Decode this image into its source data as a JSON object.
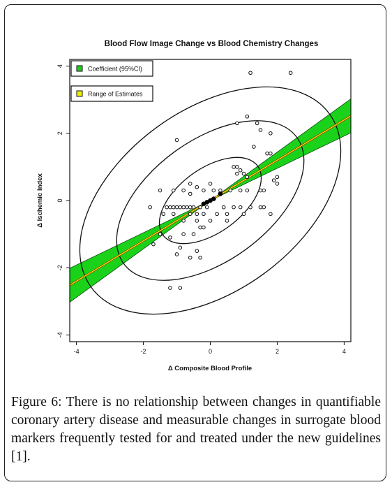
{
  "chart_data": {
    "type": "scatter",
    "title": "Blood Flow Image Change vs Blood Chemistry Changes",
    "xlabel": "Δ Composite Blood Profile",
    "ylabel": "Δ Ischemic Index",
    "xlim": [
      -4.2,
      4.2
    ],
    "ylim": [
      -4.2,
      4.2
    ],
    "xticks": [
      "-4",
      "-2",
      "0",
      "2",
      "4"
    ],
    "yticks": [
      "-4",
      "-2",
      "0",
      "2",
      "4"
    ],
    "grid": false,
    "legend_position": "top-left",
    "legend": [
      {
        "label": "Coefficient (95%CI)",
        "color": "#22cc22"
      },
      {
        "label": "Range of Estimates",
        "color": "#eeee00"
      }
    ],
    "regression": {
      "slope": 0.6,
      "intercept": 0.0,
      "ci_upper_slope": 0.72,
      "ci_lower_slope": 0.48,
      "center": [
        0,
        0
      ]
    },
    "ellipses": [
      {
        "center": [
          0,
          0
        ],
        "semi_major": 1.75,
        "semi_minor": 0.95,
        "angle_deg": 36
      },
      {
        "center": [
          0,
          0
        ],
        "semi_major": 3.2,
        "semi_minor": 1.8,
        "angle_deg": 36
      },
      {
        "center": [
          0,
          0
        ],
        "semi_major": 4.4,
        "semi_minor": 2.7,
        "angle_deg": 36
      }
    ],
    "points": [
      [
        1.2,
        3.8
      ],
      [
        2.4,
        3.8
      ],
      [
        -1.0,
        1.8
      ],
      [
        1.1,
        2.5
      ],
      [
        0.8,
        2.3
      ],
      [
        1.4,
        2.3
      ],
      [
        1.5,
        2.1
      ],
      [
        1.8,
        2.0
      ],
      [
        1.3,
        1.6
      ],
      [
        1.7,
        1.4
      ],
      [
        1.8,
        1.4
      ],
      [
        0.7,
        1.0
      ],
      [
        0.8,
        1.0
      ],
      [
        0.9,
        0.9
      ],
      [
        0.8,
        0.8
      ],
      [
        1.0,
        0.8
      ],
      [
        1.1,
        0.7
      ],
      [
        2.0,
        0.7
      ],
      [
        1.9,
        0.6
      ],
      [
        2.0,
        0.5
      ],
      [
        -1.5,
        0.3
      ],
      [
        -1.1,
        0.3
      ],
      [
        -0.8,
        0.3
      ],
      [
        -0.6,
        0.5
      ],
      [
        -0.4,
        0.4
      ],
      [
        -0.2,
        0.3
      ],
      [
        0.0,
        0.5
      ],
      [
        0.1,
        0.3
      ],
      [
        0.3,
        0.3
      ],
      [
        0.6,
        0.3
      ],
      [
        0.9,
        0.3
      ],
      [
        1.1,
        0.3
      ],
      [
        1.5,
        0.3
      ],
      [
        1.6,
        0.3
      ],
      [
        -0.6,
        0.2
      ],
      [
        -1.8,
        -0.2
      ],
      [
        -1.3,
        -0.2
      ],
      [
        -1.2,
        -0.2
      ],
      [
        -1.1,
        -0.2
      ],
      [
        -1.0,
        -0.2
      ],
      [
        -0.9,
        -0.2
      ],
      [
        -0.8,
        -0.2
      ],
      [
        -0.7,
        -0.2
      ],
      [
        -0.6,
        -0.2
      ],
      [
        -0.5,
        -0.2
      ],
      [
        -0.3,
        -0.2
      ],
      [
        -0.1,
        -0.2
      ],
      [
        0.4,
        -0.2
      ],
      [
        0.7,
        -0.2
      ],
      [
        0.9,
        -0.2
      ],
      [
        1.2,
        -0.2
      ],
      [
        1.5,
        -0.2
      ],
      [
        1.6,
        -0.2
      ],
      [
        -1.4,
        -0.4
      ],
      [
        -1.1,
        -0.4
      ],
      [
        -0.6,
        -0.4
      ],
      [
        -0.4,
        -0.4
      ],
      [
        -0.2,
        -0.4
      ],
      [
        0.2,
        -0.4
      ],
      [
        0.5,
        -0.4
      ],
      [
        1.0,
        -0.4
      ],
      [
        1.8,
        -0.4
      ],
      [
        -0.8,
        -0.6
      ],
      [
        -0.4,
        -0.6
      ],
      [
        0.0,
        -0.6
      ],
      [
        0.5,
        -0.6
      ],
      [
        -0.3,
        -0.8
      ],
      [
        -0.2,
        -0.8
      ],
      [
        -0.5,
        -1.0
      ],
      [
        -0.8,
        -1.0
      ],
      [
        -1.2,
        -1.1
      ],
      [
        -1.5,
        -1.0
      ],
      [
        -1.7,
        -1.3
      ],
      [
        -0.9,
        -1.4
      ],
      [
        -0.4,
        -1.5
      ],
      [
        -1.0,
        -1.6
      ],
      [
        -0.6,
        -1.7
      ],
      [
        -0.3,
        -1.7
      ],
      [
        -1.2,
        -2.6
      ],
      [
        -0.9,
        -2.6
      ]
    ],
    "center_points": [
      [
        -0.2,
        -0.1
      ],
      [
        0.0,
        0.0
      ],
      [
        0.3,
        0.2
      ],
      [
        -0.1,
        -0.05
      ],
      [
        0.1,
        0.05
      ]
    ]
  },
  "caption": {
    "label": "Figure 6:",
    "text": " There is no relationship between changes in quantifiable coronary artery disease and measurable changes in surrogate blood markers frequently tested for and treated under the new guidelines [1]."
  }
}
